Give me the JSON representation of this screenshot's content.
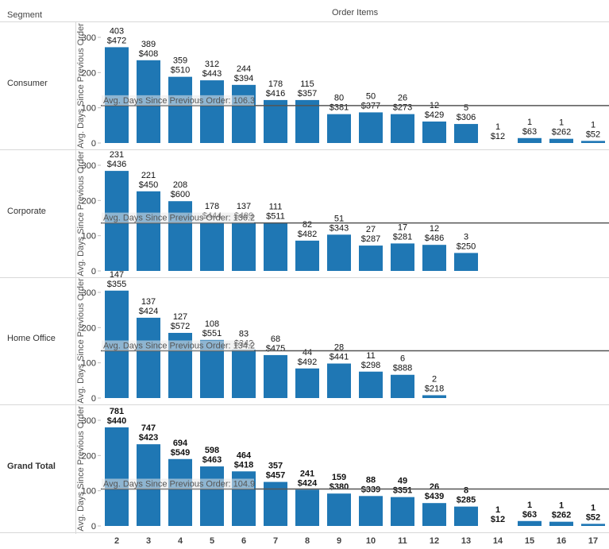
{
  "header": {
    "segment_col": "Segment",
    "column_title": "Order Items"
  },
  "chart_data": {
    "type": "bar",
    "x_categories": [
      "2",
      "3",
      "4",
      "5",
      "6",
      "7",
      "8",
      "9",
      "10",
      "11",
      "12",
      "13",
      "14",
      "15",
      "16",
      "17"
    ],
    "y_axis_label": "Avg. Days Since Previous Order",
    "y_ticks": [
      0,
      100,
      200,
      300
    ],
    "ylim": [
      0,
      340
    ],
    "bar_color": "#1f77b4",
    "reference_line_color": "#555555",
    "panels": [
      {
        "segment": "Consumer",
        "bold": false,
        "reference_line": {
          "label": "Avg. Days Since Previous Order: 106.3",
          "value": 106.3
        },
        "bars": [
          {
            "x": "2",
            "height": 272,
            "count": "403",
            "amount": "$472"
          },
          {
            "x": "3",
            "height": 235,
            "count": "389",
            "amount": "$408"
          },
          {
            "x": "4",
            "height": 188,
            "count": "359",
            "amount": "$510"
          },
          {
            "x": "5",
            "height": 178,
            "count": "312",
            "amount": "$443"
          },
          {
            "x": "6",
            "height": 165,
            "count": "244",
            "amount": "$394"
          },
          {
            "x": "7",
            "height": 122,
            "count": "178",
            "amount": "$416"
          },
          {
            "x": "8",
            "height": 122,
            "count": "115",
            "amount": "$357"
          },
          {
            "x": "9",
            "height": 82,
            "count": "80",
            "amount": "$381"
          },
          {
            "x": "10",
            "height": 87,
            "count": "50",
            "amount": "$377"
          },
          {
            "x": "11",
            "height": 82,
            "count": "26",
            "amount": "$273"
          },
          {
            "x": "12",
            "height": 61,
            "count": "12",
            "amount": "$429"
          },
          {
            "x": "13",
            "height": 54,
            "count": "5",
            "amount": "$306"
          },
          {
            "x": "14",
            "height": 0,
            "count": "1",
            "amount": "$12"
          },
          {
            "x": "15",
            "height": 14,
            "count": "1",
            "amount": "$63"
          },
          {
            "x": "16",
            "height": 12,
            "count": "1",
            "amount": "$262"
          },
          {
            "x": "17",
            "height": 6,
            "count": "1",
            "amount": "$52"
          }
        ]
      },
      {
        "segment": "Corporate",
        "bold": false,
        "reference_line": {
          "label": "Avg. Days Since Previous Order: 136.2",
          "value": 136.2
        },
        "bars": [
          {
            "x": "2",
            "height": 284,
            "count": "231",
            "amount": "$436"
          },
          {
            "x": "3",
            "height": 226,
            "count": "221",
            "amount": "$450"
          },
          {
            "x": "4",
            "height": 198,
            "count": "208",
            "amount": "$600"
          },
          {
            "x": "5",
            "height": 138,
            "count": "178",
            "amount": "$444"
          },
          {
            "x": "6",
            "height": 138,
            "count": "137",
            "amount": "$499"
          },
          {
            "x": "7",
            "height": 136,
            "count": "111",
            "amount": "$511"
          },
          {
            "x": "8",
            "height": 86,
            "count": "82",
            "amount": "$482"
          },
          {
            "x": "9",
            "height": 103,
            "count": "51",
            "amount": "$343"
          },
          {
            "x": "10",
            "height": 72,
            "count": "27",
            "amount": "$287"
          },
          {
            "x": "11",
            "height": 78,
            "count": "17",
            "amount": "$281"
          },
          {
            "x": "12",
            "height": 74,
            "count": "12",
            "amount": "$486"
          },
          {
            "x": "13",
            "height": 51,
            "count": "3",
            "amount": "$250"
          }
        ]
      },
      {
        "segment": "Home Office",
        "bold": false,
        "reference_line": {
          "label": "Avg. Days Since Previous Order: 134.2",
          "value": 134.2
        },
        "bars": [
          {
            "x": "2",
            "height": 305,
            "count": "147",
            "amount": "$355"
          },
          {
            "x": "3",
            "height": 228,
            "count": "137",
            "amount": "$424"
          },
          {
            "x": "4",
            "height": 185,
            "count": "127",
            "amount": "$572"
          },
          {
            "x": "5",
            "height": 165,
            "count": "108",
            "amount": "$551"
          },
          {
            "x": "6",
            "height": 137,
            "count": "83",
            "amount": "$342"
          },
          {
            "x": "7",
            "height": 122,
            "count": "68",
            "amount": "$475"
          },
          {
            "x": "8",
            "height": 84,
            "count": "44",
            "amount": "$492"
          },
          {
            "x": "9",
            "height": 98,
            "count": "28",
            "amount": "$441"
          },
          {
            "x": "10",
            "height": 75,
            "count": "11",
            "amount": "$298"
          },
          {
            "x": "11",
            "height": 66,
            "count": "6",
            "amount": "$888"
          },
          {
            "x": "12",
            "height": 8,
            "count": "2",
            "amount": "$218"
          }
        ]
      },
      {
        "segment": "Grand Total",
        "bold": true,
        "reference_line": {
          "label": "Avg. Days Since Previous Order: 104.9",
          "value": 104.9
        },
        "bars": [
          {
            "x": "2",
            "height": 280,
            "count": "781",
            "amount": "$440"
          },
          {
            "x": "3",
            "height": 232,
            "count": "747",
            "amount": "$423"
          },
          {
            "x": "4",
            "height": 190,
            "count": "694",
            "amount": "$549"
          },
          {
            "x": "5",
            "height": 169,
            "count": "598",
            "amount": "$463"
          },
          {
            "x": "6",
            "height": 155,
            "count": "464",
            "amount": "$418"
          },
          {
            "x": "7",
            "height": 125,
            "count": "357",
            "amount": "$457"
          },
          {
            "x": "8",
            "height": 103,
            "count": "241",
            "amount": "$424"
          },
          {
            "x": "9",
            "height": 92,
            "count": "159",
            "amount": "$380"
          },
          {
            "x": "10",
            "height": 85,
            "count": "88",
            "amount": "$339"
          },
          {
            "x": "11",
            "height": 82,
            "count": "49",
            "amount": "$351"
          },
          {
            "x": "12",
            "height": 65,
            "count": "26",
            "amount": "$439"
          },
          {
            "x": "13",
            "height": 55,
            "count": "8",
            "amount": "$285"
          },
          {
            "x": "14",
            "height": 0,
            "count": "1",
            "amount": "$12"
          },
          {
            "x": "15",
            "height": 14,
            "count": "1",
            "amount": "$63"
          },
          {
            "x": "16",
            "height": 12,
            "count": "1",
            "amount": "$262"
          },
          {
            "x": "17",
            "height": 6,
            "count": "1",
            "amount": "$52"
          }
        ]
      }
    ]
  }
}
